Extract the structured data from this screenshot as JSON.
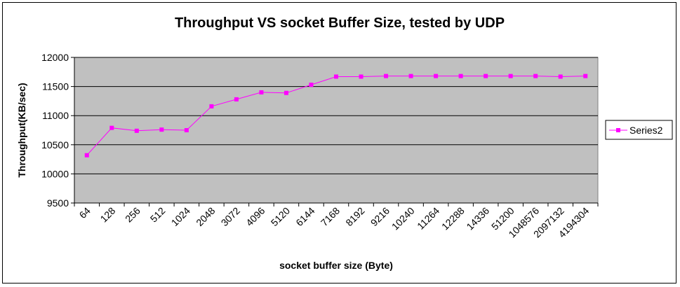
{
  "chart_data": {
    "type": "line",
    "title": "Throughput VS socket Buffer Size, tested by UDP",
    "xlabel": "socket buffer size (Byte)",
    "ylabel": "Throughput(KB/sec)",
    "ylim": [
      9500,
      12000
    ],
    "yticks": [
      "9500",
      "10000",
      "10500",
      "11000",
      "11500",
      "12000"
    ],
    "grid": true,
    "legend_position": "right",
    "plot_background": "#c0c0c0",
    "line_color": "#ff00ff",
    "tick_labels": [
      "64",
      "128",
      "256",
      "512",
      "1024",
      "2048",
      "3072",
      "4096",
      "5120",
      "6144",
      "7168",
      "8192",
      "9216",
      "10240",
      "11264",
      "12288",
      "14336",
      "51200",
      "1048576",
      "2097132",
      "4194304"
    ],
    "series": [
      {
        "name": "Series2",
        "values": [
          10320,
          10790,
          10740,
          10760,
          10750,
          11160,
          11280,
          11400,
          11390,
          11530,
          11670,
          11670,
          11680,
          11680,
          11680,
          11680,
          11680,
          11680,
          11680,
          11670,
          11680
        ]
      }
    ]
  }
}
